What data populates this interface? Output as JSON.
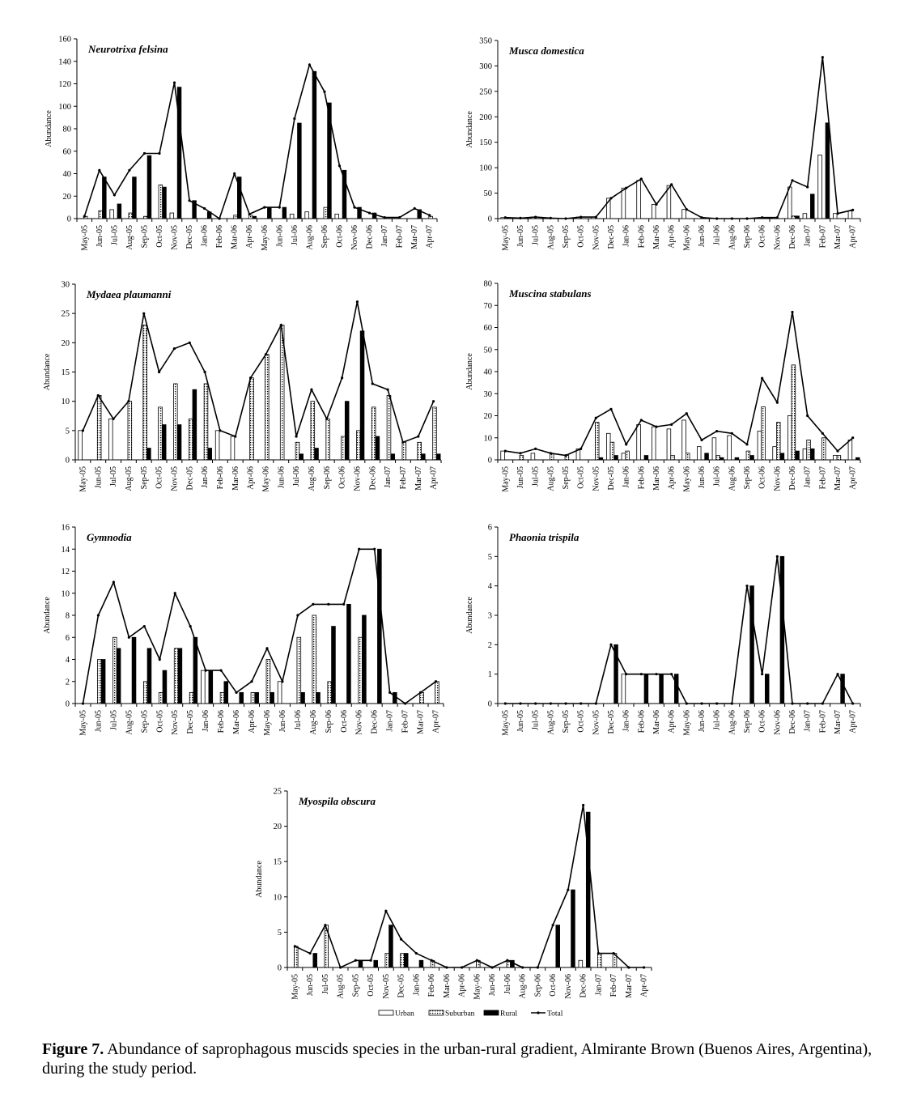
{
  "figure": {
    "caption_label": "Figure 7.",
    "caption_text": " Abundance of saprophagous muscids species in the urban-rural gradient, Almirante Brown (Buenos Aires, Argentina), during the study period."
  },
  "legend": [
    {
      "name": "Urban",
      "style": "outline"
    },
    {
      "name": "Suburban",
      "style": "dotted"
    },
    {
      "name": "Rural",
      "style": "solid"
    },
    {
      "name": "Total",
      "style": "line"
    }
  ],
  "colors": {
    "bar_fill_rural": "#000000",
    "bar_outline": "#000000",
    "background": "#ffffff"
  },
  "chart_data": [
    {
      "type": "bar",
      "title": "Neurotrixa felsina",
      "ylabel": "Abundance",
      "ylim": [
        0,
        160
      ],
      "yticks": [
        0,
        20,
        40,
        60,
        80,
        100,
        120,
        140,
        160
      ],
      "categories": [
        "May-05",
        "Jun-05",
        "Jul-05",
        "Aug-05",
        "Sep-05",
        "Oct-05",
        "Nov-05",
        "Dec-05",
        "Jan-06",
        "Feb-06",
        "Mar-06",
        "Apr-06",
        "May-06",
        "Jun-06",
        "Jul-06",
        "Aug-06",
        "Sep-06",
        "Oct-06",
        "Nov-06",
        "Dec-06",
        "Jan-07",
        "Feb-07",
        "Mar-07",
        "Apr-07"
      ],
      "series": [
        {
          "name": "Urban",
          "values": [
            0,
            0,
            8,
            0,
            0,
            0,
            5,
            0,
            0,
            0,
            0,
            0,
            0,
            0,
            4,
            6,
            0,
            4,
            0,
            0,
            0,
            0,
            0,
            0
          ]
        },
        {
          "name": "Suburban",
          "values": [
            2,
            7,
            0,
            5,
            2,
            30,
            0,
            0,
            0,
            0,
            3,
            3,
            0,
            0,
            0,
            0,
            10,
            0,
            0,
            0,
            0,
            0,
            0,
            2
          ]
        },
        {
          "name": "Rural",
          "values": [
            0,
            37,
            13,
            37,
            56,
            28,
            117,
            16,
            6,
            0,
            37,
            2,
            10,
            10,
            85,
            131,
            103,
            43,
            10,
            5,
            0,
            0,
            8,
            0
          ]
        },
        {
          "name": "Total",
          "values": [
            2,
            43,
            21,
            43,
            58,
            58,
            121,
            16,
            9,
            0,
            40,
            4,
            10,
            10,
            89,
            137,
            113,
            47,
            10,
            5,
            1,
            1,
            9,
            3
          ]
        }
      ]
    },
    {
      "type": "bar",
      "title": "Musca domestica",
      "ylabel": "Abundance",
      "ylim": [
        0,
        350
      ],
      "yticks": [
        0,
        50,
        100,
        150,
        200,
        250,
        300,
        350
      ],
      "categories": [
        "May-05",
        "Jun-05",
        "Jul-05",
        "Aug-05",
        "Sep-05",
        "Oct-05",
        "Nov-05",
        "Dec-05",
        "Jan-06",
        "Feb-06",
        "Mar-06",
        "Apr-06",
        "May-06",
        "Jun-06",
        "Jul-06",
        "Aug-06",
        "Sep-06",
        "Oct-06",
        "Nov-06",
        "Dec-06",
        "Jan-07",
        "Feb-07",
        "Mar-07",
        "Apr-07"
      ],
      "series": [
        {
          "name": "Urban",
          "values": [
            2,
            0,
            3,
            0,
            0,
            3,
            3,
            40,
            60,
            75,
            28,
            65,
            18,
            0,
            0,
            0,
            0,
            2,
            2,
            62,
            10,
            125,
            10,
            15
          ]
        },
        {
          "name": "Suburban",
          "values": [
            0,
            0,
            0,
            0,
            0,
            0,
            0,
            0,
            0,
            0,
            0,
            0,
            0,
            0,
            0,
            0,
            0,
            0,
            0,
            5,
            0,
            0,
            0,
            0
          ]
        },
        {
          "name": "Rural",
          "values": [
            0,
            0,
            0,
            0,
            0,
            0,
            0,
            0,
            0,
            0,
            0,
            0,
            0,
            0,
            0,
            0,
            0,
            0,
            0,
            5,
            48,
            188,
            0,
            0
          ]
        },
        {
          "name": "Total",
          "values": [
            2,
            1,
            3,
            1,
            0,
            3,
            3,
            40,
            60,
            78,
            28,
            67,
            18,
            2,
            0,
            0,
            0,
            2,
            2,
            75,
            62,
            317,
            10,
            17
          ]
        }
      ]
    },
    {
      "type": "bar",
      "title": "Mydaea plaumanni",
      "ylabel": "Abundance",
      "ylim": [
        0,
        30
      ],
      "yticks": [
        0,
        5,
        10,
        15,
        20,
        25,
        30
      ],
      "categories": [
        "May-05",
        "Jun-05",
        "Jul-05",
        "Aug-05",
        "Sep-05",
        "Oct-05",
        "Nov-05",
        "Dec-05",
        "Jan-06",
        "Feb-06",
        "Mar-06",
        "Apr-06",
        "May-06",
        "Jun-06",
        "Jul-06",
        "Aug-06",
        "Sep-06",
        "Oct-06",
        "Nov-06",
        "Dec-06",
        "Jan-07",
        "Feb-07",
        "Mar-07",
        "Apr-07"
      ],
      "series": [
        {
          "name": "Urban",
          "values": [
            5,
            0,
            7,
            0,
            0,
            0,
            0,
            0,
            0,
            5,
            4,
            0,
            0,
            0,
            0,
            0,
            0,
            0,
            0,
            0,
            0,
            0,
            0,
            0
          ]
        },
        {
          "name": "Suburban",
          "values": [
            0,
            11,
            0,
            10,
            23,
            9,
            13,
            7,
            13,
            0,
            0,
            14,
            18,
            23,
            3,
            10,
            7,
            4,
            5,
            9,
            11,
            3,
            3,
            9
          ]
        },
        {
          "name": "Rural",
          "values": [
            0,
            0,
            0,
            0,
            2,
            6,
            6,
            12,
            2,
            0,
            0,
            0,
            0,
            0,
            1,
            2,
            0,
            10,
            22,
            4,
            1,
            0,
            1,
            1
          ]
        },
        {
          "name": "Total",
          "values": [
            5,
            11,
            7,
            10,
            25,
            15,
            19,
            20,
            15,
            5,
            4,
            14,
            18,
            23,
            4,
            12,
            7,
            14,
            27,
            13,
            12,
            3,
            4,
            10
          ]
        }
      ]
    },
    {
      "type": "bar",
      "title": "Muscina stabulans",
      "ylabel": "Abundance",
      "ylim": [
        0,
        80
      ],
      "yticks": [
        0,
        10,
        20,
        30,
        40,
        50,
        60,
        70,
        80
      ],
      "categories": [
        "May-05",
        "Jun-05",
        "Jul-05",
        "Aug-05",
        "Sep-05",
        "Oct-05",
        "Nov-05",
        "Dec-05",
        "Jan-06",
        "Feb-06",
        "Mar-06",
        "Apr-06",
        "May-06",
        "Jun-06",
        "Jul-06",
        "Aug-06",
        "Sep-06",
        "Oct-06",
        "Nov-06",
        "Dec-06",
        "Jan-07",
        "Feb-07",
        "Mar-07",
        "Apr-07"
      ],
      "series": [
        {
          "name": "Urban",
          "values": [
            4,
            0,
            3,
            0,
            0,
            5,
            0,
            12,
            3,
            16,
            15,
            14,
            18,
            6,
            10,
            11,
            0,
            13,
            6,
            20,
            5,
            0,
            2,
            9
          ]
        },
        {
          "name": "Suburban",
          "values": [
            0,
            2,
            0,
            3,
            2,
            0,
            17,
            8,
            4,
            0,
            0,
            2,
            3,
            0,
            2,
            0,
            4,
            24,
            17,
            43,
            9,
            10,
            2,
            0
          ]
        },
        {
          "name": "Rural",
          "values": [
            0,
            0,
            0,
            0,
            0,
            0,
            1,
            2,
            0,
            2,
            0,
            0,
            0,
            3,
            1,
            1,
            2,
            0,
            3,
            4,
            5,
            0,
            0,
            1
          ]
        },
        {
          "name": "Total",
          "values": [
            4,
            3,
            5,
            3,
            2,
            5,
            19,
            23,
            7,
            18,
            15,
            16,
            21,
            9,
            13,
            12,
            7,
            37,
            26,
            67,
            20,
            12,
            4,
            10
          ]
        }
      ]
    },
    {
      "type": "bar",
      "title": "Gymnodia",
      "ylabel": "Abundance",
      "ylim": [
        0,
        16
      ],
      "yticks": [
        0,
        2,
        4,
        6,
        8,
        10,
        12,
        14,
        16
      ],
      "categories": [
        "May-05",
        "Jun-05",
        "Jul-05",
        "Aug-05",
        "Sep-05",
        "Oct-05",
        "Nov-05",
        "Dec-05",
        "Jan-06",
        "Feb-06",
        "Mar-06",
        "Apr-06",
        "May-06",
        "Jun-06",
        "Jul-06",
        "Aug-06",
        "Sep-06",
        "Oct-06",
        "Nov-06",
        "Dec-06",
        "Jan-07",
        "Feb-07",
        "Mar-07",
        "Apr-07"
      ],
      "series": [
        {
          "name": "Urban",
          "values": [
            0,
            0,
            0,
            0,
            0,
            0,
            0,
            0,
            3,
            0,
            0,
            0,
            0,
            2,
            0,
            0,
            0,
            0,
            0,
            0,
            0,
            0,
            0,
            0
          ]
        },
        {
          "name": "Suburban",
          "values": [
            0,
            4,
            6,
            0,
            2,
            1,
            5,
            1,
            0,
            1,
            0,
            1,
            4,
            0,
            6,
            8,
            2,
            0,
            6,
            0,
            0,
            0,
            1,
            2
          ]
        },
        {
          "name": "Rural",
          "values": [
            0,
            4,
            5,
            6,
            5,
            3,
            5,
            6,
            3,
            2,
            1,
            1,
            1,
            0,
            1,
            1,
            7,
            9,
            8,
            14,
            1,
            0,
            0,
            0
          ]
        },
        {
          "name": "Total",
          "values": [
            0,
            8,
            11,
            6,
            7,
            4,
            10,
            7,
            3,
            3,
            1,
            2,
            5,
            2,
            8,
            9,
            9,
            9,
            14,
            14,
            1,
            0,
            1,
            2
          ]
        }
      ]
    },
    {
      "type": "bar",
      "title": "Phaonia trispila",
      "ylabel": "Abundance",
      "ylim": [
        0,
        6
      ],
      "yticks": [
        0,
        1,
        2,
        3,
        4,
        5,
        6
      ],
      "categories": [
        "May-05",
        "Jun-05",
        "Jul-05",
        "Aug-05",
        "Sep-05",
        "Oct-05",
        "Nov-05",
        "Dec-05",
        "Jan-06",
        "Feb-06",
        "Mar-06",
        "Apr-06",
        "May-06",
        "Jun-06",
        "Jul-06",
        "Aug-06",
        "Sep-06",
        "Oct-06",
        "Nov-06",
        "Dec-06",
        "Jan-07",
        "Feb-07",
        "Mar-07",
        "Apr-07"
      ],
      "series": [
        {
          "name": "Urban",
          "values": [
            0,
            0,
            0,
            0,
            0,
            0,
            0,
            0,
            1,
            0,
            0,
            0,
            0,
            0,
            0,
            0,
            0,
            0,
            0,
            0,
            0,
            0,
            0,
            0
          ]
        },
        {
          "name": "Suburban",
          "values": [
            0,
            0,
            0,
            0,
            0,
            0,
            0,
            0,
            0,
            0,
            0,
            0,
            0,
            0,
            0,
            0,
            0,
            0,
            0,
            0,
            0,
            0,
            0,
            0
          ]
        },
        {
          "name": "Rural",
          "values": [
            0,
            0,
            0,
            0,
            0,
            0,
            0,
            2,
            0,
            1,
            1,
            1,
            0,
            0,
            0,
            0,
            4,
            1,
            5,
            0,
            0,
            0,
            1,
            0
          ]
        },
        {
          "name": "Total",
          "values": [
            0,
            0,
            0,
            0,
            0,
            0,
            0,
            2,
            1,
            1,
            1,
            1,
            0,
            0,
            0,
            0,
            4,
            1,
            5,
            0,
            0,
            0,
            1,
            0
          ]
        }
      ]
    },
    {
      "type": "bar",
      "title": "Myospila obscura",
      "ylabel": "Abundance",
      "ylim": [
        0,
        25
      ],
      "yticks": [
        0,
        5,
        10,
        15,
        20,
        25
      ],
      "categories": [
        "May-05",
        "Jun-05",
        "Jul-05",
        "Aug-05",
        "Sep-05",
        "Oct-05",
        "Nov-05",
        "Dec-05",
        "Jan-06",
        "Feb-06",
        "Mar-06",
        "Apr-06",
        "May-06",
        "Jun-06",
        "Jul-06",
        "Aug-06",
        "Sep-06",
        "Oct-06",
        "Nov-06",
        "Dec-06",
        "Jan-07",
        "Feb-07",
        "Mar-07",
        "Apr-07"
      ],
      "series": [
        {
          "name": "Urban",
          "values": [
            0,
            0,
            0,
            0,
            0,
            0,
            0,
            0,
            0,
            0,
            0,
            0,
            0,
            0,
            0,
            0,
            0,
            0,
            0,
            1,
            0,
            0,
            0,
            0
          ]
        },
        {
          "name": "Suburban",
          "values": [
            3,
            0,
            6,
            0,
            0,
            0,
            2,
            2,
            0,
            1,
            0,
            0,
            1,
            0,
            1,
            0,
            0,
            0,
            0,
            0,
            2,
            2,
            0,
            0
          ]
        },
        {
          "name": "Rural",
          "values": [
            0,
            2,
            0,
            0,
            1,
            1,
            6,
            2,
            1,
            0,
            0,
            0,
            0,
            0,
            1,
            0,
            0,
            6,
            11,
            22,
            0,
            0,
            0,
            0
          ]
        },
        {
          "name": "Total",
          "values": [
            3,
            2,
            6,
            0,
            1,
            1,
            8,
            4,
            2,
            1,
            0,
            0,
            1,
            0,
            1,
            0,
            0,
            6,
            11,
            23,
            2,
            2,
            0,
            0
          ]
        }
      ]
    }
  ]
}
